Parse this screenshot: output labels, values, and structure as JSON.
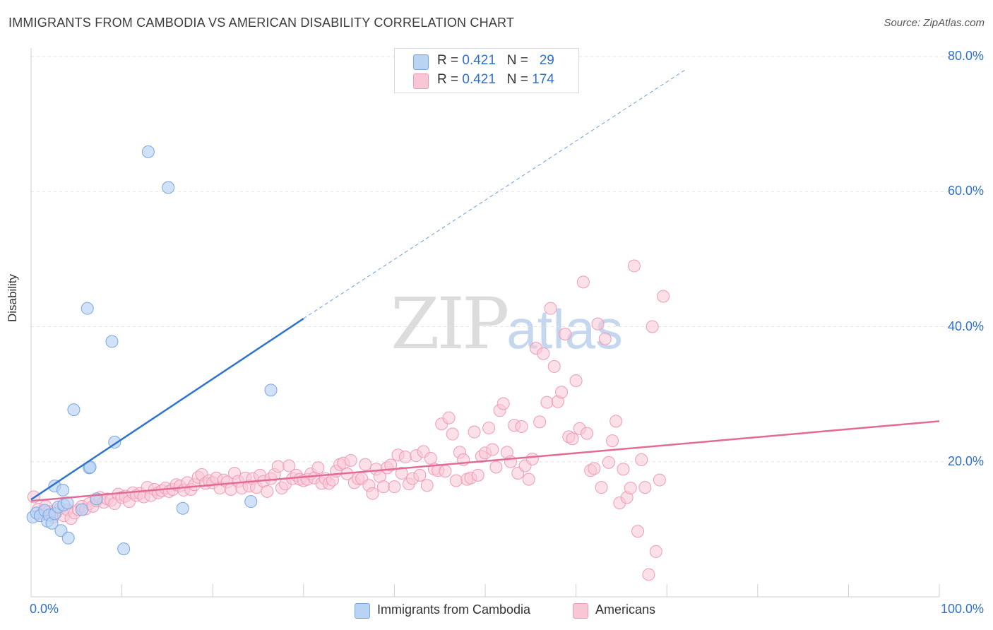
{
  "header": {
    "title": "IMMIGRANTS FROM CAMBODIA VS AMERICAN DISABILITY CORRELATION CHART",
    "source": "Source: ZipAtlas.com"
  },
  "watermark": {
    "zip": "ZIP",
    "atlas": "atlas"
  },
  "colors": {
    "cambodia_fill": "#b9d3f5",
    "cambodia_stroke": "#7aa6e0",
    "cambodia_line": "#2e73d2",
    "americans_fill": "#f9c6d6",
    "americans_stroke": "#ee9bb6",
    "americans_line": "#e36a96",
    "axis_text": "#2e6fd0",
    "grid": "#e3e3e3"
  },
  "legend": {
    "rows": [
      {
        "r_label": "R = ",
        "r_value": "0.421",
        "n_label": "N = ",
        "n_value": "29"
      },
      {
        "r_label": "R = ",
        "r_value": "0.421",
        "n_label": "N = ",
        "n_value": "174"
      }
    ]
  },
  "chart_data": {
    "type": "scatter",
    "title": "IMMIGRANTS FROM CAMBODIA VS AMERICAN DISABILITY CORRELATION CHART",
    "xlabel": "",
    "ylabel": "Disability",
    "xlim": [
      0,
      100
    ],
    "ylim": [
      0,
      80
    ],
    "x_tick_labels": [
      "0.0%",
      "100.0%"
    ],
    "y_ticks": [
      20,
      40,
      60,
      80
    ],
    "y_tick_labels": [
      "20.0%",
      "40.0%",
      "60.0%",
      "80.0%"
    ],
    "grid": true,
    "legend_position": "top-center",
    "series": [
      {
        "name": "Immigrants from Cambodia",
        "R": 0.421,
        "N": 29,
        "trend": {
          "x": [
            0,
            30
          ],
          "y": [
            14.4,
            41.2
          ],
          "dashed_to": [
            72,
            78
          ]
        },
        "points": [
          [
            0.2,
            11.8
          ],
          [
            0.6,
            12.4
          ],
          [
            1.0,
            12.0
          ],
          [
            1.5,
            12.8
          ],
          [
            1.8,
            11.2
          ],
          [
            2.0,
            12.1
          ],
          [
            2.3,
            10.9
          ],
          [
            2.6,
            12.3
          ],
          [
            3.0,
            13.3
          ],
          [
            3.3,
            9.8
          ],
          [
            3.6,
            13.6
          ],
          [
            4.0,
            13.9
          ],
          [
            4.1,
            8.7
          ],
          [
            2.6,
            16.4
          ],
          [
            3.5,
            15.8
          ],
          [
            5.6,
            12.9
          ],
          [
            6.4,
            19.1
          ],
          [
            6.5,
            19.2
          ],
          [
            7.2,
            14.5
          ],
          [
            9.2,
            22.9
          ],
          [
            4.7,
            27.7
          ],
          [
            6.2,
            42.7
          ],
          [
            8.9,
            37.8
          ],
          [
            10.2,
            7.1
          ],
          [
            12.9,
            65.9
          ],
          [
            15.1,
            60.6
          ],
          [
            16.7,
            13.1
          ],
          [
            24.2,
            14.1
          ],
          [
            26.4,
            30.6
          ]
        ]
      },
      {
        "name": "Americans",
        "R": 0.421,
        "N": 174,
        "trend": {
          "x": [
            0,
            100
          ],
          "y": [
            14.2,
            26.0
          ]
        },
        "points": [
          [
            0.3,
            14.8
          ],
          [
            0.8,
            13.0
          ],
          [
            1.2,
            12.3
          ],
          [
            1.6,
            13.4
          ],
          [
            2.0,
            12.6
          ],
          [
            2.4,
            11.8
          ],
          [
            2.8,
            12.5
          ],
          [
            3.2,
            13.1
          ],
          [
            3.6,
            12.0
          ],
          [
            4.0,
            12.9
          ],
          [
            4.4,
            11.6
          ],
          [
            4.8,
            12.4
          ],
          [
            5.2,
            12.9
          ],
          [
            5.6,
            13.4
          ],
          [
            6.0,
            13.0
          ],
          [
            6.4,
            13.8
          ],
          [
            6.8,
            13.4
          ],
          [
            7.2,
            14.2
          ],
          [
            7.6,
            14.7
          ],
          [
            8.0,
            14.0
          ],
          [
            8.4,
            14.5
          ],
          [
            8.8,
            14.3
          ],
          [
            9.2,
            13.8
          ],
          [
            9.6,
            15.2
          ],
          [
            10.0,
            14.7
          ],
          [
            10.4,
            14.9
          ],
          [
            10.8,
            14.1
          ],
          [
            11.2,
            15.4
          ],
          [
            11.6,
            15.0
          ],
          [
            12.0,
            15.3
          ],
          [
            12.4,
            14.8
          ],
          [
            12.8,
            16.2
          ],
          [
            13.2,
            15.0
          ],
          [
            13.6,
            15.9
          ],
          [
            14.0,
            15.4
          ],
          [
            14.4,
            15.7
          ],
          [
            14.8,
            16.1
          ],
          [
            15.2,
            15.6
          ],
          [
            15.6,
            15.9
          ],
          [
            16.0,
            16.6
          ],
          [
            16.4,
            16.4
          ],
          [
            16.8,
            15.8
          ],
          [
            17.2,
            16.9
          ],
          [
            17.6,
            15.9
          ],
          [
            18.0,
            16.6
          ],
          [
            18.4,
            17.7
          ],
          [
            18.8,
            18.1
          ],
          [
            19.2,
            16.8
          ],
          [
            19.6,
            17.2
          ],
          [
            20.0,
            16.9
          ],
          [
            20.4,
            17.6
          ],
          [
            20.8,
            16.1
          ],
          [
            21.2,
            17.3
          ],
          [
            21.6,
            17.0
          ],
          [
            22.0,
            15.9
          ],
          [
            22.4,
            18.3
          ],
          [
            22.8,
            17.1
          ],
          [
            23.2,
            16.1
          ],
          [
            23.6,
            17.6
          ],
          [
            24.0,
            16.4
          ],
          [
            24.4,
            17.5
          ],
          [
            24.8,
            16.2
          ],
          [
            25.2,
            18.0
          ],
          [
            25.6,
            17.1
          ],
          [
            26.0,
            15.6
          ],
          [
            26.4,
            17.5
          ],
          [
            26.8,
            18.1
          ],
          [
            27.2,
            19.3
          ],
          [
            27.6,
            16.1
          ],
          [
            28.0,
            16.7
          ],
          [
            28.4,
            19.4
          ],
          [
            28.8,
            17.5
          ],
          [
            29.2,
            18.0
          ],
          [
            29.6,
            17.4
          ],
          [
            30.0,
            17.2
          ],
          [
            30.4,
            17.4
          ],
          [
            30.8,
            18.2
          ],
          [
            31.2,
            17.6
          ],
          [
            31.6,
            19.1
          ],
          [
            32.0,
            16.8
          ],
          [
            32.4,
            17.5
          ],
          [
            32.8,
            16.8
          ],
          [
            33.2,
            17.3
          ],
          [
            33.6,
            18.6
          ],
          [
            34.0,
            19.6
          ],
          [
            34.4,
            19.8
          ],
          [
            34.8,
            18.2
          ],
          [
            35.2,
            20.2
          ],
          [
            35.6,
            16.9
          ],
          [
            36.0,
            17.5
          ],
          [
            36.4,
            17.5
          ],
          [
            36.8,
            19.6
          ],
          [
            37.2,
            16.5
          ],
          [
            37.6,
            15.3
          ],
          [
            38.0,
            18.9
          ],
          [
            38.4,
            17.8
          ],
          [
            38.8,
            16.3
          ],
          [
            39.2,
            19.1
          ],
          [
            39.6,
            19.5
          ],
          [
            40.0,
            16.3
          ],
          [
            40.4,
            21.0
          ],
          [
            40.8,
            18.3
          ],
          [
            41.2,
            20.7
          ],
          [
            41.6,
            16.7
          ],
          [
            42.0,
            17.5
          ],
          [
            42.4,
            20.9
          ],
          [
            42.8,
            18.0
          ],
          [
            43.2,
            21.5
          ],
          [
            43.6,
            16.5
          ],
          [
            44.0,
            20.5
          ],
          [
            44.4,
            18.9
          ],
          [
            44.8,
            18.7
          ],
          [
            45.2,
            25.6
          ],
          [
            45.6,
            18.6
          ],
          [
            46.0,
            26.5
          ],
          [
            46.4,
            24.1
          ],
          [
            46.8,
            17.2
          ],
          [
            47.2,
            21.4
          ],
          [
            47.6,
            20.3
          ],
          [
            48.0,
            17.4
          ],
          [
            48.4,
            17.6
          ],
          [
            48.8,
            24.4
          ],
          [
            49.2,
            18.0
          ],
          [
            49.6,
            20.8
          ],
          [
            50.0,
            21.3
          ],
          [
            50.4,
            25.0
          ],
          [
            50.8,
            21.8
          ],
          [
            51.2,
            19.2
          ],
          [
            51.6,
            27.6
          ],
          [
            52.0,
            28.6
          ],
          [
            52.4,
            21.4
          ],
          [
            52.8,
            20.0
          ],
          [
            53.2,
            25.4
          ],
          [
            53.6,
            18.3
          ],
          [
            54.0,
            25.2
          ],
          [
            54.4,
            19.4
          ],
          [
            54.8,
            17.4
          ],
          [
            55.2,
            20.4
          ],
          [
            55.6,
            36.8
          ],
          [
            56.0,
            25.9
          ],
          [
            56.4,
            36.0
          ],
          [
            56.8,
            28.8
          ],
          [
            57.2,
            42.7
          ],
          [
            57.6,
            34.1
          ],
          [
            58.0,
            28.9
          ],
          [
            58.4,
            30.3
          ],
          [
            58.8,
            38.9
          ],
          [
            59.2,
            23.7
          ],
          [
            59.6,
            23.4
          ],
          [
            60.0,
            32.0
          ],
          [
            60.4,
            24.9
          ],
          [
            60.8,
            46.6
          ],
          [
            61.2,
            24.2
          ],
          [
            61.6,
            18.7
          ],
          [
            62.0,
            19.0
          ],
          [
            62.4,
            40.4
          ],
          [
            62.8,
            16.2
          ],
          [
            63.2,
            38.2
          ],
          [
            63.6,
            19.9
          ],
          [
            64.0,
            23.1
          ],
          [
            64.4,
            26.0
          ],
          [
            64.8,
            13.9
          ],
          [
            65.2,
            18.9
          ],
          [
            65.6,
            14.7
          ],
          [
            66.0,
            16.1
          ],
          [
            66.4,
            49.0
          ],
          [
            66.8,
            9.7
          ],
          [
            67.2,
            20.3
          ],
          [
            67.6,
            16.2
          ],
          [
            68.0,
            3.3
          ],
          [
            68.4,
            40.0
          ],
          [
            68.8,
            6.7
          ],
          [
            69.2,
            17.3
          ],
          [
            69.6,
            44.5
          ]
        ]
      }
    ]
  }
}
